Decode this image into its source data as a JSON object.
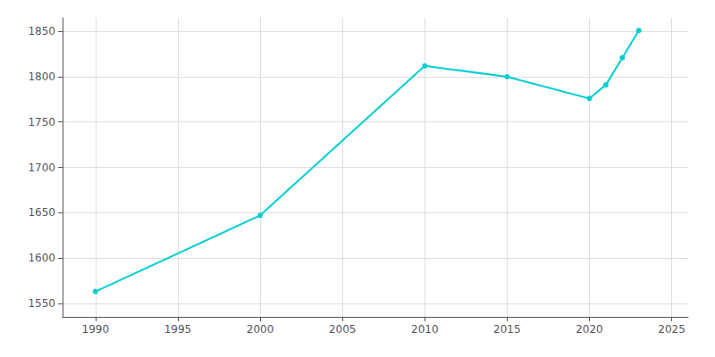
{
  "chart_data": {
    "type": "line",
    "x": [
      1990,
      2000,
      2010,
      2015,
      2020,
      2021,
      2022,
      2023
    ],
    "values": [
      1563,
      1647,
      1812,
      1800,
      1776,
      1791,
      1821,
      1851
    ],
    "color": "#00CED1",
    "marker": "circle",
    "xlim": [
      1988,
      2026
    ],
    "ylim": [
      1535,
      1865
    ],
    "xticks": [
      1990,
      1995,
      2000,
      2005,
      2010,
      2015,
      2020,
      2025
    ],
    "yticks": [
      1550,
      1600,
      1650,
      1700,
      1750,
      1800,
      1850
    ],
    "grid": true
  }
}
